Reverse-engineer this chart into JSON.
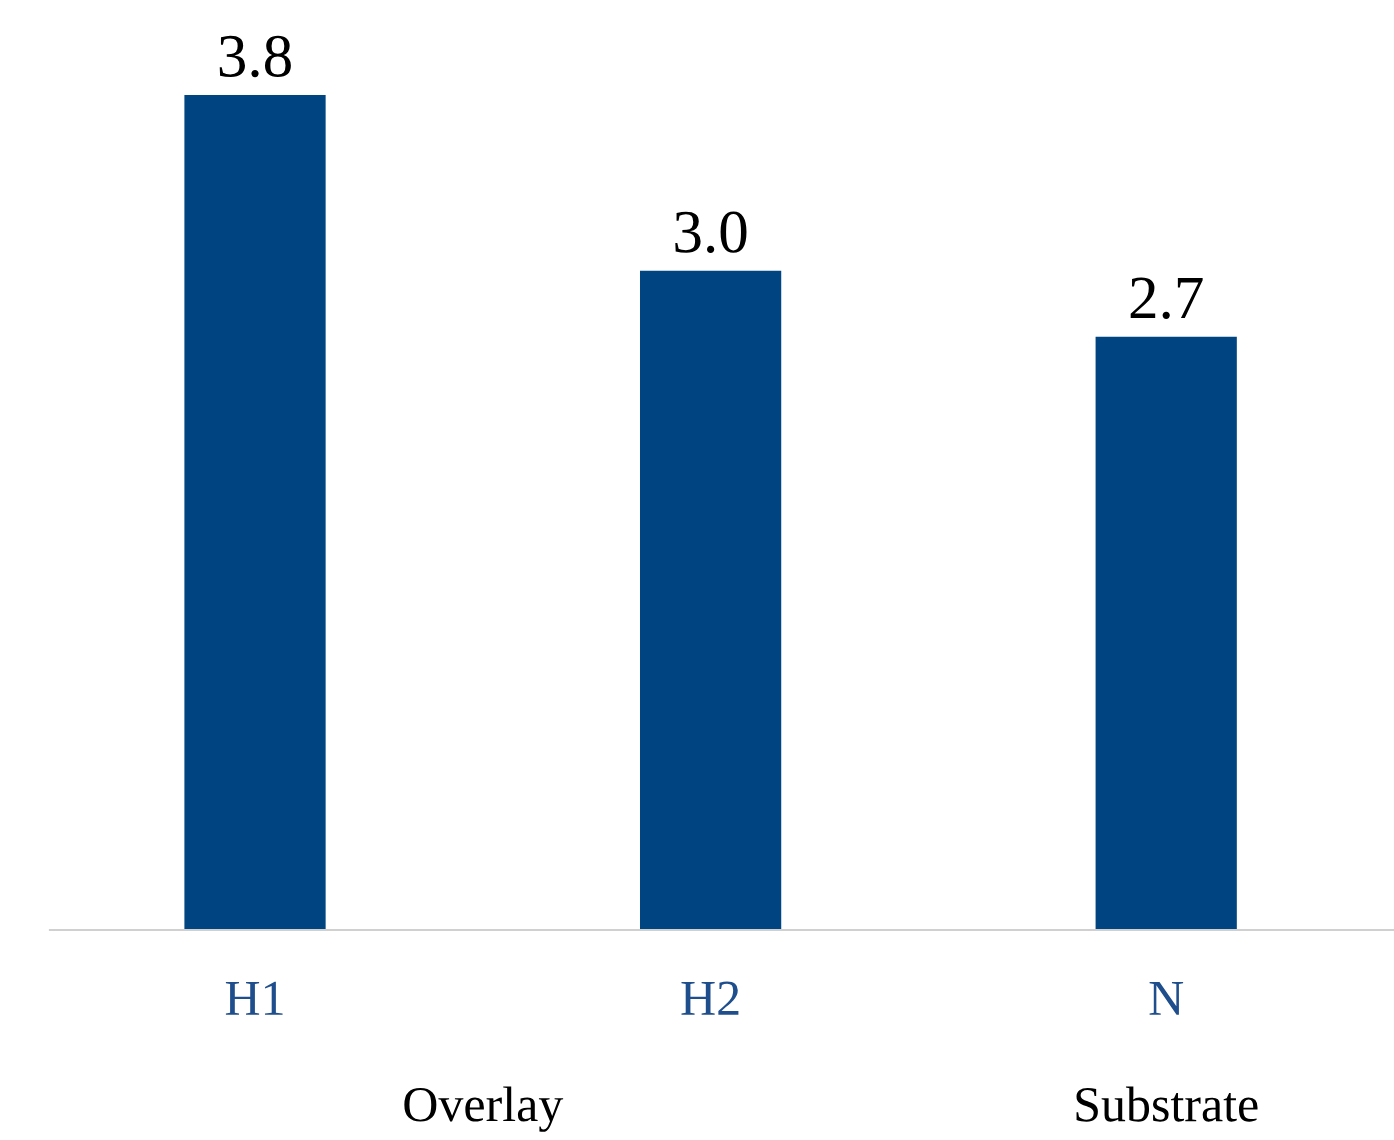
{
  "chart_data": {
    "type": "bar",
    "categories": [
      "H1",
      "H2",
      "N"
    ],
    "values": [
      3.8,
      3.0,
      2.7
    ],
    "color": "#004481",
    "value_labels": [
      "3.8",
      "3.0",
      "2.7"
    ],
    "annotations": [
      "Overlay",
      "Substrate"
    ]
  }
}
